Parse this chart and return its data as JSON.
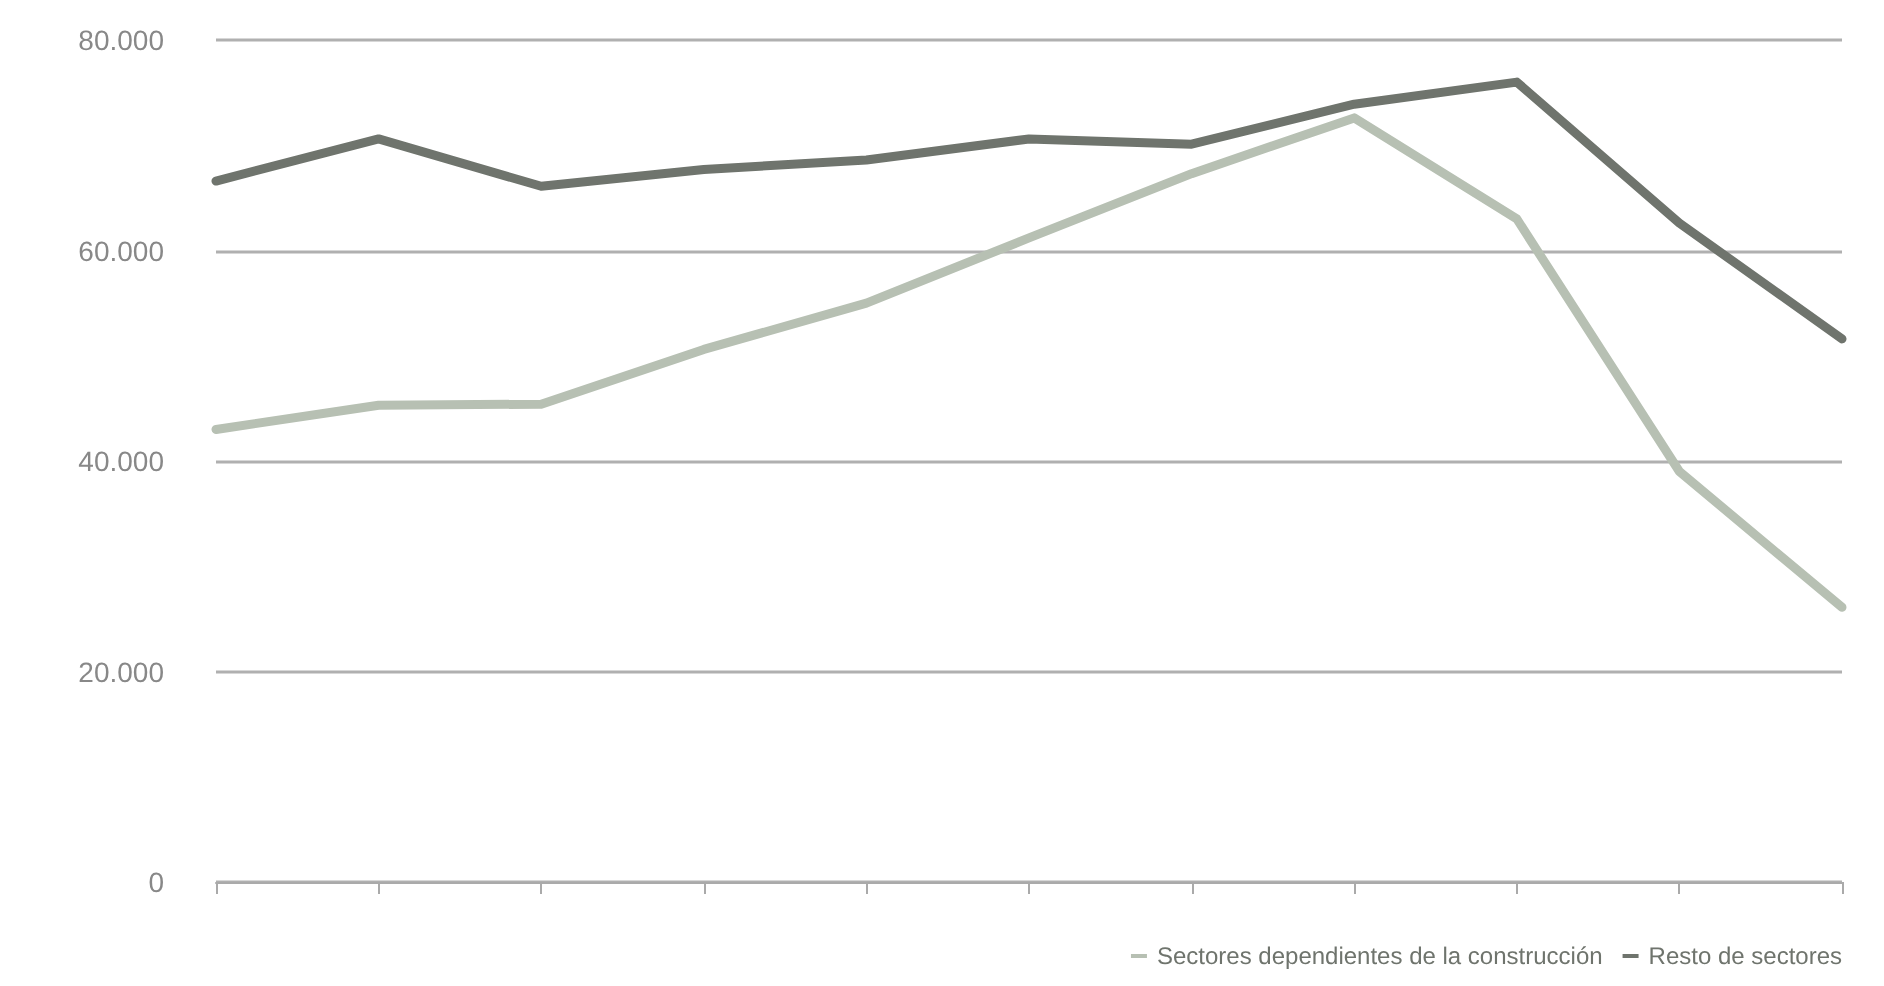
{
  "chart_data": {
    "type": "line",
    "categories": [
      null,
      null,
      null,
      null,
      null,
      null,
      null,
      null,
      null,
      null,
      null
    ],
    "series": [
      {
        "name": "Sectores dependientes de la construcción",
        "color": "#b7c0b3",
        "values": [
          43000,
          45300,
          45400,
          50600,
          55000,
          61200,
          67300,
          72600,
          63000,
          39000,
          26100
        ]
      },
      {
        "name": "Resto de sectores",
        "color": "#6f746d",
        "values": [
          66600,
          70600,
          66100,
          67700,
          68600,
          70600,
          70100,
          73900,
          76000,
          62600,
          51600
        ]
      }
    ],
    "ylim": [
      0,
      80000
    ],
    "yticks": [
      {
        "value": 0,
        "label": "0"
      },
      {
        "value": 20000,
        "label": "20.000"
      },
      {
        "value": 40000,
        "label": "40.000"
      },
      {
        "value": 60000,
        "label": "60.000"
      },
      {
        "value": 80000,
        "label": "80.000"
      }
    ],
    "grid": "y",
    "legend": "bottom right",
    "marker": "none",
    "line_style": "solid"
  }
}
